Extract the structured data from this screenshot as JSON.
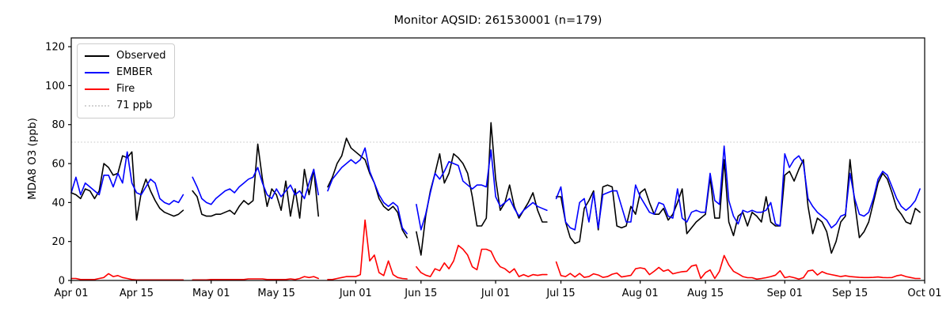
{
  "figure_title": "Monitor AQSID: 261530001 (n=179)",
  "chart_data": {
    "type": "line",
    "title": "Monitor AQSID: 261530001 (n=179)",
    "xlabel": "",
    "ylabel": "MDA8 O3 (ppb)",
    "ylim": [
      0,
      124.5
    ],
    "yticks": [
      0,
      20,
      40,
      60,
      80,
      100,
      120
    ],
    "x_unit": "days since Apr 01",
    "x_range_days": [
      0,
      183
    ],
    "xtick_days": [
      0,
      14,
      30,
      44,
      61,
      75,
      91,
      105,
      122,
      136,
      153,
      167,
      183
    ],
    "xtick_labels": [
      "Apr 01",
      "Apr 15",
      "May 01",
      "May 15",
      "Jun 01",
      "Jun 15",
      "Jul 01",
      "Jul 15",
      "Aug 01",
      "Aug 15",
      "Sep 01",
      "Sep 15",
      "Oct 01"
    ],
    "grid": false,
    "frequency": "daily",
    "date_start": "Apr 01",
    "date_end": "Sep 30",
    "threshold": {
      "value": 71,
      "label": "71 ppb",
      "color": "#d3d3d3",
      "style": "dotted"
    },
    "legend": {
      "position": "upper-left",
      "entries": [
        {
          "label": "Observed",
          "color": "#000000",
          "style": "solid"
        },
        {
          "label": "EMBER",
          "color": "#0000ff",
          "style": "solid"
        },
        {
          "label": "Fire",
          "color": "#ff0000",
          "style": "solid"
        },
        {
          "label": "71 ppb",
          "color": "#d3d3d3",
          "style": "dotted"
        }
      ]
    },
    "series": [
      {
        "name": "Observed",
        "color": "#000000",
        "n": 179,
        "values": [
          45,
          44,
          42,
          47,
          46,
          42,
          46,
          60,
          58,
          54,
          55,
          64,
          63,
          66,
          31,
          45,
          52,
          46,
          41,
          37,
          35,
          34,
          33,
          34,
          36,
          null,
          46,
          43,
          34,
          33,
          33,
          34,
          34,
          35,
          36,
          34,
          38,
          41,
          39,
          41,
          70,
          52,
          38,
          47,
          44,
          36,
          51,
          33,
          47,
          32,
          57,
          44,
          57,
          33,
          null,
          48,
          53,
          60,
          64,
          73,
          68,
          66,
          64,
          62,
          55,
          50,
          42,
          38,
          36,
          38,
          35,
          26,
          22,
          null,
          25,
          13,
          33,
          46,
          55,
          65,
          50,
          55,
          65,
          63,
          60,
          55,
          43,
          28,
          28,
          32,
          81,
          52,
          36,
          40,
          49,
          38,
          32,
          36,
          40,
          45,
          36,
          30,
          30,
          null,
          43,
          43,
          30,
          22,
          19,
          20,
          37,
          41,
          46,
          26,
          48,
          49,
          48,
          28,
          27,
          28,
          38,
          34,
          45,
          47,
          40,
          34,
          34,
          37,
          31,
          34,
          40,
          47,
          24,
          27,
          30,
          32,
          34,
          53,
          32,
          32,
          62,
          30,
          23,
          33,
          35,
          28,
          35,
          33,
          30,
          43,
          30,
          28,
          28,
          54,
          56,
          51,
          57,
          62,
          38,
          24,
          32,
          30,
          25,
          14,
          20,
          30,
          33,
          62,
          40,
          22,
          25,
          30,
          40,
          50,
          55,
          52,
          45,
          37,
          34,
          30,
          29,
          37,
          35
        ]
      },
      {
        "name": "EMBER",
        "color": "#0000ff",
        "values": [
          45,
          53,
          44,
          50,
          48,
          46,
          44,
          54,
          54,
          48,
          55,
          50,
          66,
          50,
          45,
          44,
          48,
          52,
          50,
          42,
          40,
          39,
          41,
          40,
          44,
          null,
          53,
          48,
          42,
          40,
          39,
          42,
          44,
          46,
          47,
          45,
          48,
          50,
          52,
          53,
          58,
          50,
          44,
          42,
          47,
          43,
          46,
          49,
          44,
          46,
          42,
          50,
          57,
          44,
          null,
          46,
          52,
          55,
          58,
          60,
          62,
          60,
          62,
          68,
          56,
          50,
          44,
          40,
          38,
          40,
          38,
          27,
          24,
          null,
          39,
          26,
          34,
          45,
          55,
          52,
          56,
          61,
          60,
          59,
          51,
          49,
          47,
          49,
          49,
          48,
          67,
          43,
          38,
          40,
          42,
          37,
          33,
          36,
          38,
          40,
          38,
          37,
          36,
          null,
          42,
          48,
          30,
          27,
          26,
          40,
          42,
          30,
          45,
          27,
          44,
          45,
          46,
          46,
          38,
          30,
          30,
          49,
          43,
          39,
          35,
          34,
          40,
          39,
          33,
          32,
          47,
          32,
          30,
          35,
          36,
          35,
          35,
          55,
          41,
          39,
          69,
          41,
          33,
          29,
          36,
          35,
          36,
          35,
          35,
          36,
          40,
          29,
          28,
          65,
          58,
          62,
          64,
          60,
          42,
          38,
          35,
          33,
          31,
          27,
          29,
          33,
          34,
          55,
          42,
          34,
          33,
          35,
          42,
          52,
          56,
          54,
          48,
          42,
          38,
          36,
          38,
          41,
          47
        ]
      },
      {
        "name": "Fire",
        "color": "#ff0000",
        "values": [
          1,
          1,
          0.5,
          0.5,
          0.5,
          0.5,
          1,
          1.5,
          3.5,
          2,
          2.5,
          1.5,
          1,
          0.5,
          0.3,
          0.3,
          0.3,
          0.3,
          0.3,
          0.3,
          0.3,
          0.3,
          0.3,
          0.3,
          0.3,
          null,
          0.3,
          0.3,
          0.3,
          0.3,
          0.5,
          0.5,
          0.5,
          0.5,
          0.5,
          0.5,
          0.5,
          0.5,
          0.8,
          0.8,
          0.8,
          0.8,
          0.5,
          0.5,
          0.5,
          0.5,
          0.5,
          0.8,
          0.5,
          1,
          2,
          1.5,
          2,
          1,
          null,
          0.5,
          0.5,
          1,
          1.5,
          2,
          2,
          2,
          3,
          31,
          10,
          13,
          4,
          2.5,
          10,
          3,
          1.5,
          1,
          0.8,
          null,
          7,
          4,
          2.7,
          2,
          6,
          5,
          9,
          6,
          10,
          18,
          16,
          13,
          7,
          5.5,
          16,
          16,
          15,
          10,
          7,
          6,
          4,
          6,
          2,
          3,
          2,
          3,
          2.6,
          3,
          3,
          null,
          9.5,
          2.5,
          2,
          3.6,
          1.8,
          3.6,
          1.6,
          2,
          3.4,
          2.8,
          1.6,
          2,
          3.2,
          3.8,
          1.8,
          2.2,
          2.6,
          6,
          6.5,
          6,
          3,
          4.7,
          6.7,
          4.7,
          5.5,
          3.4,
          4,
          4.5,
          4.7,
          7.4,
          8,
          1,
          4,
          5.4,
          1,
          4.7,
          12.8,
          8,
          4.7,
          3.4,
          2,
          1.4,
          1.4,
          0.7,
          1,
          1.4,
          2,
          2.7,
          5,
          1.4,
          2,
          1.4,
          0.7,
          1.4,
          4.9,
          5.3,
          2.8,
          4.5,
          3.5,
          3,
          2.5,
          2,
          2.4,
          2,
          1.8,
          1.6,
          1.5,
          1.5,
          1.6,
          1.8,
          1.5,
          1.4,
          1.5,
          2.4,
          2.8,
          2,
          1.5,
          1,
          1
        ]
      }
    ]
  }
}
